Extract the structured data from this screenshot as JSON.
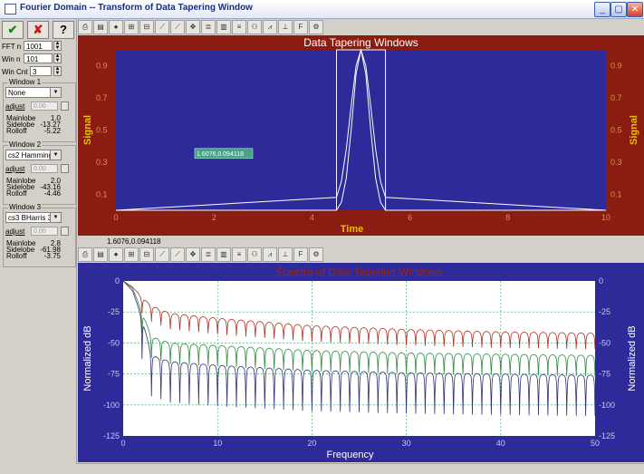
{
  "window": {
    "title": "Fourier Domain -- Transform of Data Tapering Window",
    "min": "_",
    "max": "▢",
    "close": "✕"
  },
  "toolbar_main": {
    "ok": "✔",
    "cancel": "✘",
    "help": "?"
  },
  "params": {
    "fft_label": "FFT n",
    "fft_value": "1001",
    "win_label": "Win n",
    "win_value": "101",
    "cnt_label": "Win Cnt",
    "cnt_value": "3"
  },
  "windows": [
    {
      "title": "Window 1",
      "type": "None",
      "adjust_label": "adjust",
      "adjust_value": "0.00",
      "mainlobe_label": "Mainlobe",
      "mainlobe": "1.0",
      "sidelobe_label": "Sidelobe",
      "sidelobe": "-13.27",
      "rolloff_label": "Rolloff",
      "rolloff": "-5.22"
    },
    {
      "title": "Window 2",
      "type": "cs2 Hamming",
      "adjust_label": "adjust",
      "adjust_value": "0.00",
      "mainlobe_label": "Mainlobe",
      "mainlobe": "2.0",
      "sidelobe_label": "Sidelobe",
      "sidelobe": "-43.16",
      "rolloff_label": "Rolloff",
      "rolloff": "-4.46"
    },
    {
      "title": "Window 3",
      "type": "cs3 BHarris 3",
      "adjust_label": "adjust",
      "adjust_value": "0.00",
      "mainlobe_label": "Mainlobe",
      "mainlobe": "2.8",
      "sidelobe_label": "Sidelobe",
      "sidelobe": "-61.98",
      "rolloff_label": "Rolloff",
      "rolloff": "-3.75"
    }
  ],
  "chart_toolbar_icons": [
    "print-icon",
    "save-icon",
    "palette-icon",
    "grid-icon",
    "grid-toggle-icon",
    "line-icon",
    "line2-icon",
    "zoom-icon",
    "legend-icon",
    "bar-icon",
    "list-icon",
    "binoculars-icon",
    "chart-type-icon",
    "axis-icon",
    "font-icon",
    "settings-icon"
  ],
  "time_plot": {
    "cursor_readout": "1.6076,0.094118",
    "readout_below": "1.6076,0.094118",
    "colors": {
      "background": "#2e2a9a",
      "frame": "#8a1c12",
      "title": "#ffffff",
      "axis_labels": "#e8c000",
      "ticks": "#d89050"
    }
  },
  "freq_plot": {
    "colors": {
      "background": "#ffffff",
      "frame": "#2e2a9a",
      "title": "#9c2418",
      "axis_labels": "#ffffff",
      "grid": "#35a070"
    }
  },
  "chart_data": [
    {
      "type": "line",
      "title": "Data Tapering Windows",
      "xlabel": "Time",
      "ylabel": "Signal",
      "xlim": [
        0,
        10
      ],
      "ylim": [
        0,
        1.0
      ],
      "x_ticks": [
        "0",
        "2",
        "4",
        "6",
        "8",
        "10"
      ],
      "y_ticks": [
        "0.1",
        "0.3",
        "0.5",
        "0.7",
        "0.9"
      ],
      "window_start": 4.5,
      "window_end": 5.5,
      "series": [
        {
          "values": [
            [
              0,
              0
            ],
            [
              4.5,
              0
            ],
            [
              4.5,
              1
            ],
            [
              5.5,
              1
            ],
            [
              5.5,
              0
            ],
            [
              10,
              0
            ]
          ],
          "color": "#ffffff"
        },
        {
          "values": [
            [
              0,
              0
            ],
            [
              4.5,
              0.08
            ],
            [
              4.6,
              0.18
            ],
            [
              4.7,
              0.38
            ],
            [
              4.8,
              0.65
            ],
            [
              4.9,
              0.9
            ],
            [
              5.0,
              1.0
            ],
            [
              5.1,
              0.9
            ],
            [
              5.2,
              0.65
            ],
            [
              5.3,
              0.38
            ],
            [
              5.4,
              0.18
            ],
            [
              5.5,
              0.08
            ],
            [
              10,
              0
            ]
          ],
          "color": "#ffffff"
        },
        {
          "values": [
            [
              0,
              0
            ],
            [
              4.5,
              0.0
            ],
            [
              4.6,
              0.05
            ],
            [
              4.7,
              0.2
            ],
            [
              4.8,
              0.5
            ],
            [
              4.9,
              0.85
            ],
            [
              5.0,
              1.0
            ],
            [
              5.1,
              0.85
            ],
            [
              5.2,
              0.5
            ],
            [
              5.3,
              0.2
            ],
            [
              5.4,
              0.05
            ],
            [
              5.5,
              0.0
            ],
            [
              10,
              0
            ]
          ],
          "color": "#ffffff"
        }
      ]
    },
    {
      "type": "line",
      "title": "Spectra of Data Tapering Windows",
      "xlabel": "Frequency",
      "ylabel": "Normalized dB",
      "xlim": [
        0,
        50
      ],
      "ylim": [
        -125,
        0
      ],
      "x_ticks": [
        "0",
        "10",
        "20",
        "30",
        "40",
        "50"
      ],
      "y_ticks": [
        "0",
        "-25",
        "-50",
        "-75",
        "-100",
        "-125"
      ],
      "series": [
        {
          "color": "#b03020",
          "envelope": [
            [
              0,
              0
            ],
            [
              1,
              -5
            ],
            [
              2,
              -13
            ],
            [
              3,
              -20
            ],
            [
              5,
              -26
            ],
            [
              10,
              -30
            ],
            [
              20,
              -36
            ],
            [
              30,
              -39
            ],
            [
              40,
              -41
            ],
            [
              50,
              -42
            ]
          ],
          "lobe_period": 1.0,
          "null_depth": 10
        },
        {
          "color": "#2e8a40",
          "envelope": [
            [
              0,
              0
            ],
            [
              1,
              -6
            ],
            [
              2,
              -25
            ],
            [
              3,
              -45
            ],
            [
              5,
              -50
            ],
            [
              10,
              -52
            ],
            [
              20,
              -56
            ],
            [
              30,
              -58
            ],
            [
              40,
              -59
            ],
            [
              50,
              -60
            ]
          ],
          "lobe_period": 1.0,
          "null_depth": 14
        },
        {
          "color": "#303070",
          "envelope": [
            [
              0,
              0
            ],
            [
              1,
              -8
            ],
            [
              2,
              -30
            ],
            [
              3,
              -60
            ],
            [
              5,
              -65
            ],
            [
              10,
              -68
            ],
            [
              20,
              -72
            ],
            [
              30,
              -74
            ],
            [
              40,
              -75
            ],
            [
              50,
              -76
            ]
          ],
          "lobe_period": 1.0,
          "null_depth": 30
        }
      ]
    }
  ]
}
